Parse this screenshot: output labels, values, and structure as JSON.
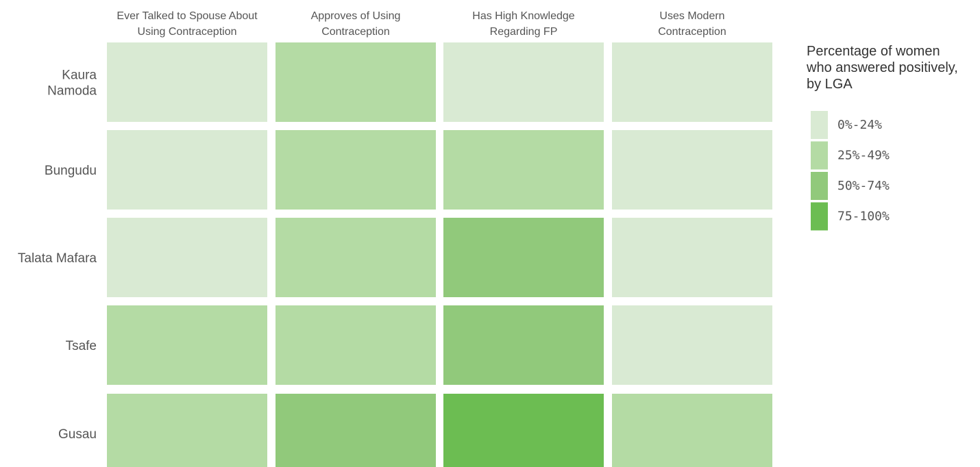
{
  "chart_data": {
    "type": "heatmap",
    "columns": [
      [
        "Ever Talked to Spouse About",
        "Using Contraception"
      ],
      [
        "Approves of Using",
        "Contraception"
      ],
      [
        "Has High Knowledge",
        "Regarding FP"
      ],
      [
        "Uses Modern",
        "Contraception"
      ]
    ],
    "rows": [
      [
        "Kaura",
        "Namoda"
      ],
      [
        "Bungudu"
      ],
      [
        "Talata Mafara"
      ],
      [
        "Tsafe"
      ],
      [
        "Gusau"
      ]
    ],
    "values": [
      [
        "0%-24%",
        "25%-49%",
        "0%-24%",
        "0%-24%"
      ],
      [
        "0%-24%",
        "25%-49%",
        "25%-49%",
        "0%-24%"
      ],
      [
        "0%-24%",
        "25%-49%",
        "50%-74%",
        "0%-24%"
      ],
      [
        "25%-49%",
        "25%-49%",
        "50%-74%",
        "0%-24%"
      ],
      [
        "25%-49%",
        "50%-74%",
        "75-100%",
        "25%-49%"
      ]
    ],
    "legend": {
      "title": [
        "Percentage of women",
        "who answered positively,",
        "by LGA"
      ],
      "position": "right",
      "bins": [
        {
          "label": "0%-24%",
          "color": "#d9ead3"
        },
        {
          "label": "25%-49%",
          "color": "#b4dba4"
        },
        {
          "label": "50%-74%",
          "color": "#91c97b"
        },
        {
          "label": "75-100%",
          "color": "#6cbd52"
        }
      ]
    }
  }
}
